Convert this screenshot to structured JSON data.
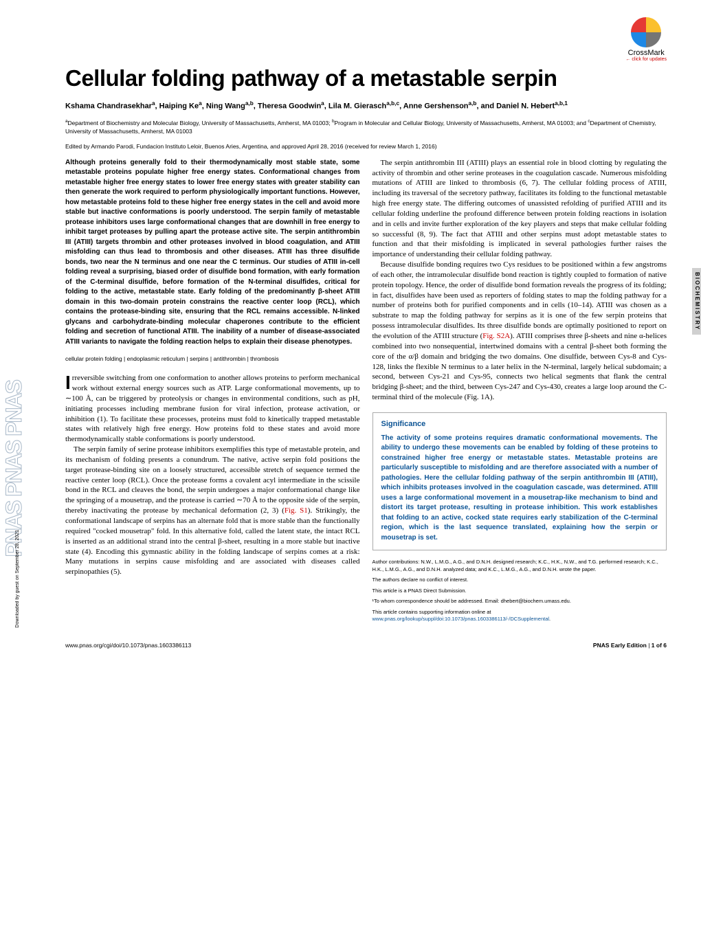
{
  "crossmark": {
    "label": "CrossMark",
    "sub": "← click for updates",
    "colors": {
      "tl": "#e53935",
      "tr": "#fbc02d",
      "bl": "#1e88e5",
      "br": "#757575"
    }
  },
  "side_label": "BIOCHEMISTRY",
  "pnas_sidebar": {
    "text": "PNAS  PNAS  PNAS",
    "outline": "#a8b8c8",
    "fontsize": 32
  },
  "download_note": "Downloaded by guest on September 28, 2021",
  "title": "Cellular folding pathway of a metastable serpin",
  "authors_html": "Kshama Chandrasekhar<sup>a</sup>, Haiping Ke<sup>a</sup>, Ning Wang<sup>a,b</sup>, Theresa Goodwin<sup>a</sup>, Lila M. Gierasch<sup>a,b,c</sup>, Anne Gershenson<sup>a,b</sup>, and Daniel N. Hebert<sup>a,b,1</sup>",
  "affiliations_html": "<sup>a</sup>Department of Biochemistry and Molecular Biology, University of Massachusetts, Amherst, MA 01003; <sup>b</sup>Program in Molecular and Cellular Biology, University of Massachusetts, Amherst, MA 01003; and <sup>c</sup>Department of Chemistry, University of Massachusetts, Amherst, MA 01003",
  "edited": "Edited by Armando Parodi, Fundacion Instituto Leloir, Buenos Aries, Argentina, and approved April 28, 2016 (received for review March 1, 2016)",
  "abstract": "Although proteins generally fold to their thermodynamically most stable state, some metastable proteins populate higher free energy states. Conformational changes from metastable higher free energy states to lower free energy states with greater stability can then generate the work required to perform physiologically important functions. However, how metastable proteins fold to these higher free energy states in the cell and avoid more stable but inactive conformations is poorly understood. The serpin family of metastable protease inhibitors uses large conformational changes that are downhill in free energy to inhibit target proteases by pulling apart the protease active site. The serpin antithrombin III (ATIII) targets thrombin and other proteases involved in blood coagulation, and ATIII misfolding can thus lead to thrombosis and other diseases. ATIII has three disulfide bonds, two near the N terminus and one near the C terminus. Our studies of ATIII in-cell folding reveal a surprising, biased order of disulfide bond formation, with early formation of the C-terminal disulfide, before formation of the N-terminal disulfides, critical for folding to the active, metastable state. Early folding of the predominantly β-sheet ATIII domain in this two-domain protein constrains the reactive center loop (RCL), which contains the protease-binding site, ensuring that the RCL remains accessible. N-linked glycans and carbohydrate-binding molecular chaperones contribute to the efficient folding and secretion of functional ATIII. The inability of a number of disease-associated ATIII variants to navigate the folding reaction helps to explain their disease phenotypes.",
  "keywords": "cellular protein folding | endoplasmic reticulum | serpins | antithrombin | thrombosis",
  "body": {
    "p1_dropcap": "I",
    "p1": "rreversible switching from one conformation to another allows proteins to perform mechanical work without external energy sources such as ATP. Large conformational movements, up to ∼100 Å, can be triggered by proteolysis or changes in environmental conditions, such as pH, initiating processes including membrane fusion for viral infection, protease activation, or inhibition (1). To facilitate these processes, proteins must fold to kinetically trapped metastable states with relatively high free energy. How proteins fold to these states and avoid more thermodynamically stable conformations is poorly understood.",
    "p2a": "The serpin family of serine protease inhibitors exemplifies this type of metastable protein, and its mechanism of folding presents a conundrum. The native, active serpin fold positions the target protease-binding site on a loosely structured, accessible stretch of sequence termed the reactive center loop (RCL). Once the protease forms a covalent acyl intermediate in the scissile bond in the RCL and cleaves the bond, the serpin undergoes a major conformational change like the springing of a mousetrap, and the protease is carried ∼70 Å to the opposite side of the serpin, thereby inactivating the protease by mechanical deformation (2, 3) (",
    "p2_link": "Fig. S1",
    "p2b": "). Strikingly, the conformational landscape of serpins has an alternate fold that is more stable than the functionally required \"cocked mousetrap\" fold. In this alternative fold, called the latent state, the intact RCL is inserted as an additional strand into the central β-sheet, resulting in a more stable but inactive state (4). Encoding this gymnastic ability in the folding landscape of serpins comes at a risk: Many mutations in serpins cause misfolding and are associated with diseases called serpinopathies (5).",
    "p3": "The serpin antithrombin III (ATIII) plays an essential role in blood clotting by regulating the activity of thrombin and other serine proteases in the coagulation cascade. Numerous misfolding mutations of ATIII are linked to thrombosis (6, 7). The cellular folding process of ATIII, including its traversal of the secretory pathway, facilitates its folding to the functional metastable high free energy state. The differing outcomes of unassisted refolding of purified ATIII and its cellular folding underline the profound difference between protein folding reactions in isolation and in cells and invite further exploration of the key players and steps that make cellular folding so successful (8, 9). The fact that ATIII and other serpins must adopt metastable states to function and that their misfolding is implicated in several pathologies further raises the importance of understanding their cellular folding pathway.",
    "p4a": "Because disulfide bonding requires two Cys residues to be positioned within a few angstroms of each other, the intramolecular disulfide bond reaction is tightly coupled to formation of native protein topology. Hence, the order of disulfide bond formation reveals the progress of its folding; in fact, disulfides have been used as reporters of folding states to map the folding pathway for a number of proteins both for purified components and in cells (10–14). ATIII was chosen as a substrate to map the folding pathway for serpins as it is one of the few serpin proteins that possess intramolecular disulfides. Its three disulfide bonds are optimally positioned to report on the evolution of the ATIII structure (",
    "p4_link": "Fig. S2A",
    "p4b": "). ATIII comprises three β-sheets and nine α-helices combined into two nonsequential, intertwined domains with a central β-sheet both forming the core of the α/β domain and bridging the two domains. One disulfide, between Cys-8 and Cys-128, links the flexible N terminus to a later helix in the N-terminal, largely helical subdomain; a second, between Cys-21 and Cys-95, connects two helical segments that flank the central bridging β-sheet; and the third, between Cys-247 and Cys-430, creates a large loop around the C-terminal third of the molecule (Fig. 1A)."
  },
  "significance": {
    "title": "Significance",
    "text": "The activity of some proteins requires dramatic conformational movements. The ability to undergo these movements can be enabled by folding of these proteins to constrained higher free energy or metastable states. Metastable proteins are particularly susceptible to misfolding and are therefore associated with a number of pathologies. Here the cellular folding pathway of the serpin antithrombin III (ATIII), which inhibits proteases involved in the coagulation cascade, was determined. ATIII uses a large conformational movement in a mousetrap-like mechanism to bind and distort its target protease, resulting in protease inhibition. This work establishes that folding to an active, cocked state requires early stabilization of the C-terminal region, which is the last sequence translated, explaining how the serpin or mousetrap is set.",
    "title_color": "#0b5394",
    "text_color": "#0b5394"
  },
  "footnotes": {
    "contrib": "Author contributions: N.W., L.M.G., A.G., and D.N.H. designed research; K.C., H.K., N.W., and T.G. performed research; K.C., H.K., L.M.G., A.G., and D.N.H. analyzed data; and K.C., L.M.G., A.G., and D.N.H. wrote the paper.",
    "conflict": "The authors declare no conflict of interest.",
    "submission": "This article is a PNAS Direct Submission.",
    "corr": "¹To whom correspondence should be addressed. Email: dhebert@biochem.umass.edu.",
    "supp_a": "This article contains supporting information online at ",
    "supp_link": "www.pnas.org/lookup/suppl/doi:10.1073/pnas.1603386113/-/DCSupplemental",
    "supp_b": "."
  },
  "footer": {
    "doi": "www.pnas.org/cgi/doi/10.1073/pnas.1603386113",
    "right": "PNAS Early Edition | 1 of 6"
  },
  "colors": {
    "link": "#c00000",
    "sig_border": "#aaaaaa",
    "text": "#000000"
  },
  "typography": {
    "title_fontsize": 33,
    "title_family": "Arial",
    "body_fontsize": 11,
    "body_family": "Georgia",
    "abstract_fontsize": 10
  }
}
